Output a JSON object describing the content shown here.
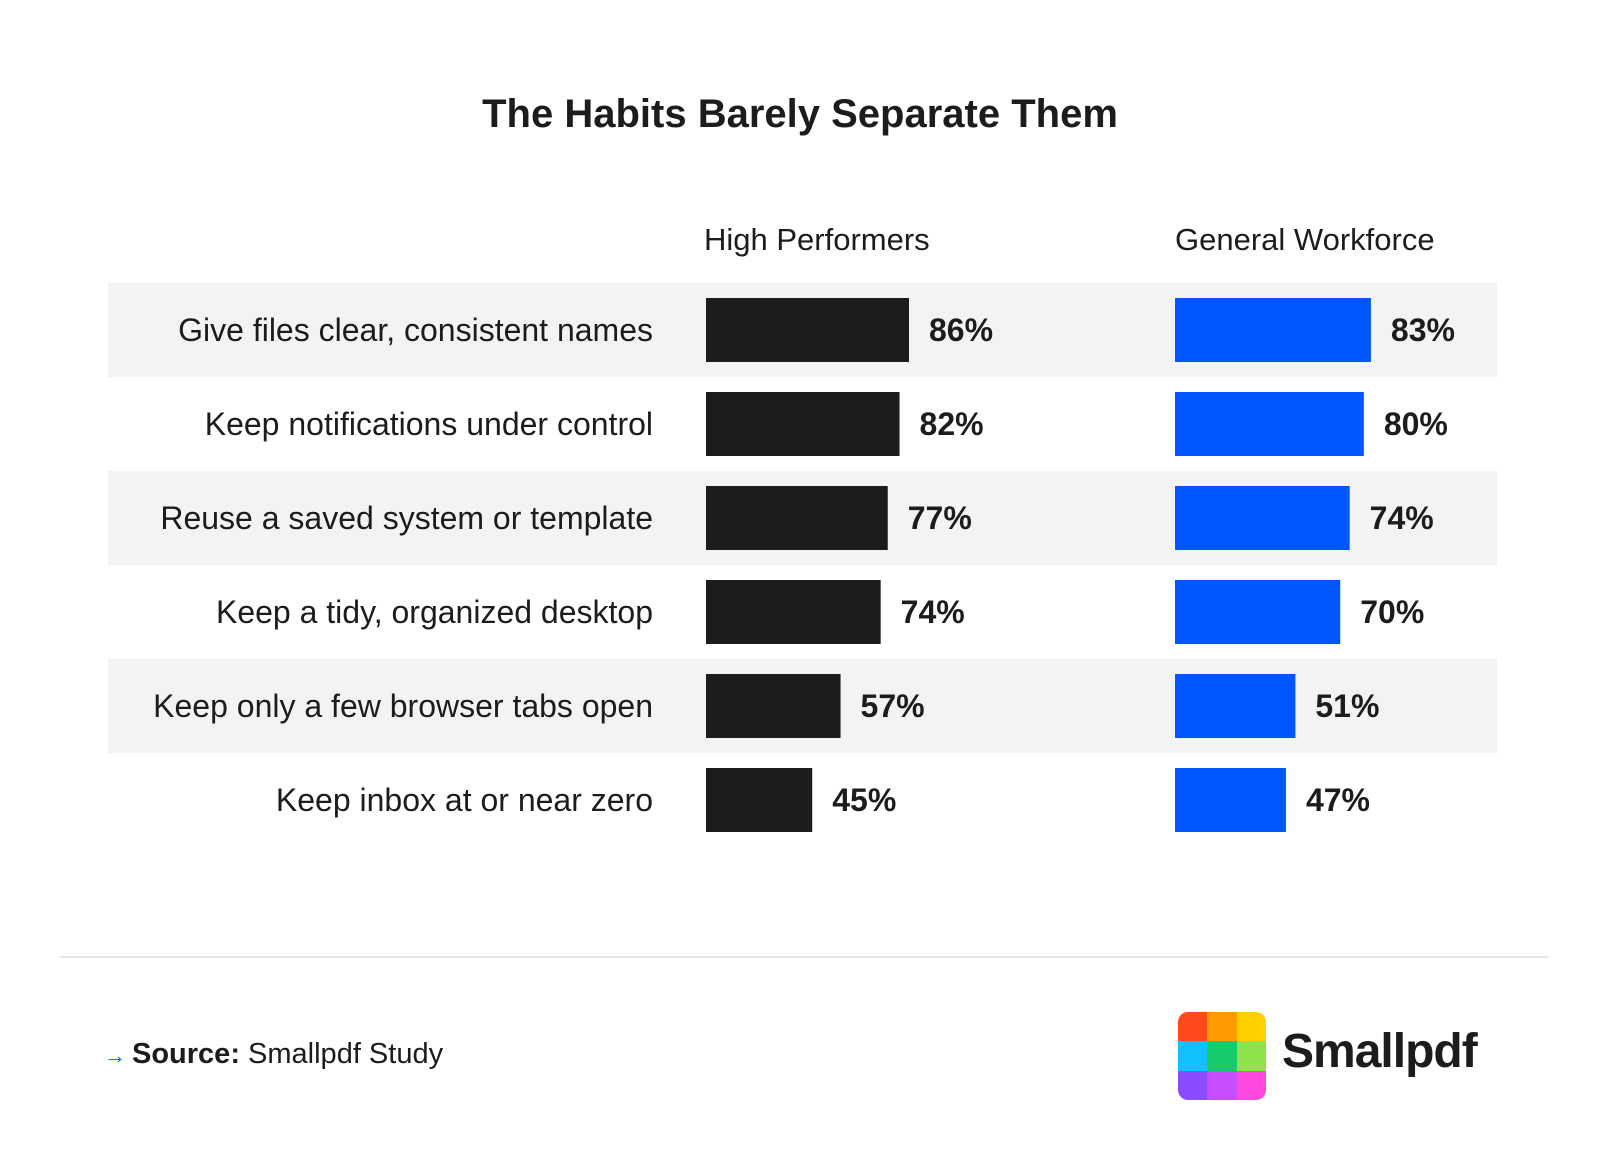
{
  "title": "The Habits Barely Separate Them",
  "chart_data": {
    "type": "bar",
    "orientation": "horizontal",
    "categories": [
      "Give files clear, consistent names",
      "Keep notifications under control",
      "Reuse a saved system or template",
      "Keep a tidy, organized desktop",
      "Keep only a few browser tabs open",
      "Keep inbox at or near zero"
    ],
    "series": [
      {
        "name": "High Performers",
        "values": [
          86,
          82,
          77,
          74,
          57,
          45
        ],
        "labels": [
          "86%",
          "82%",
          "77%",
          "74%",
          "57%",
          "45%"
        ],
        "color": "#1c1c1c"
      },
      {
        "name": "General Workforce",
        "values": [
          83,
          80,
          74,
          70,
          51,
          47
        ],
        "labels": [
          "83%",
          "80%",
          "74%",
          "70%",
          "51%",
          "47%"
        ],
        "color": "#0057ff"
      }
    ],
    "unit": "%",
    "row_stripe_color": "#f3f3f3",
    "legend": "column headers above bars",
    "grid": false
  },
  "footer": {
    "source_label": "Source:",
    "source_text": "Smallpdf Study",
    "brand": "Smallpdf",
    "arrow_icon": "arrow-right-icon",
    "logo_colors": [
      "#ff4a1c",
      "#ff9a00",
      "#ffd000",
      "#12c2ff",
      "#16cc6a",
      "#8ee34a",
      "#8b4cff",
      "#c64cff",
      "#ff48e0"
    ]
  }
}
